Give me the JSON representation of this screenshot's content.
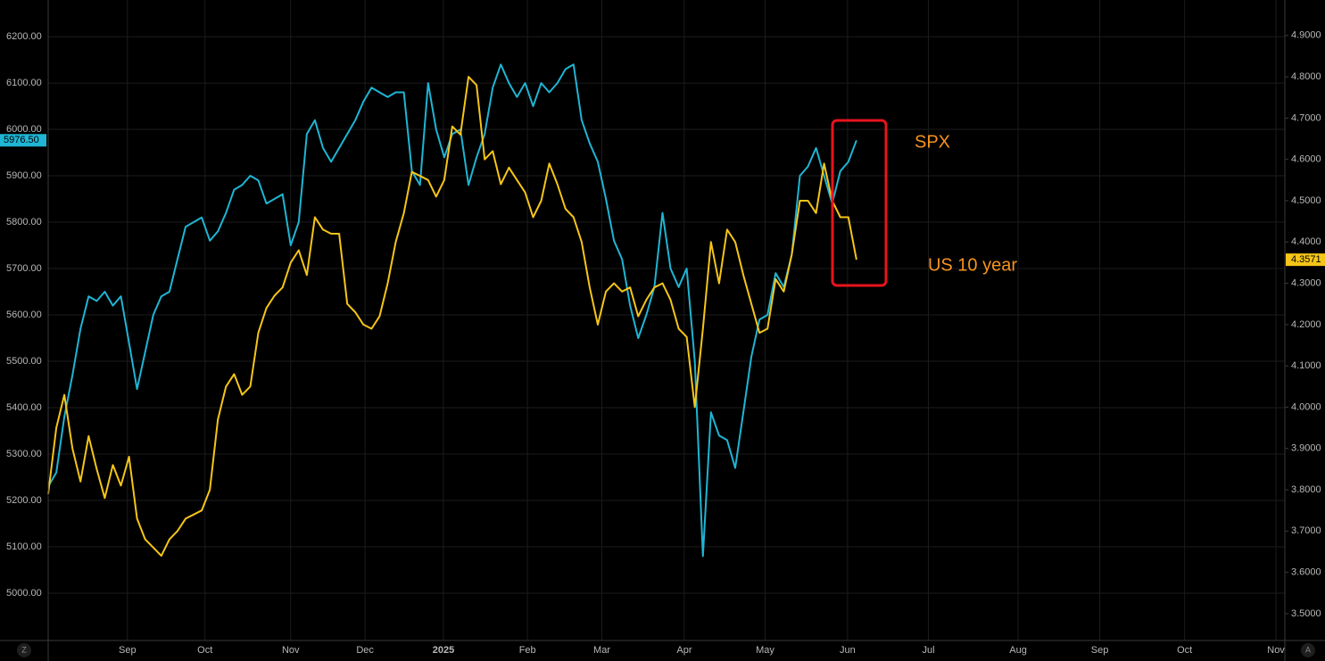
{
  "chart_data": {
    "type": "line",
    "background": "#000000",
    "grid": true,
    "annotations": [
      {
        "text": "SPX",
        "series": 0,
        "color": "#f7931e"
      },
      {
        "text": "US 10 year",
        "series": 1,
        "color": "#f7931e"
      }
    ],
    "axis_buttons": [
      "Z",
      "A"
    ],
    "xlim": [
      0,
      153
    ],
    "xticks": [
      {
        "value": 9.8,
        "label": "Sep"
      },
      {
        "value": 19.4,
        "label": "Oct"
      },
      {
        "value": 30.0,
        "label": "Nov"
      },
      {
        "value": 39.2,
        "label": "Dec"
      },
      {
        "value": 48.9,
        "label": "2025"
      },
      {
        "value": 59.3,
        "label": "Feb"
      },
      {
        "value": 68.5,
        "label": "Mar"
      },
      {
        "value": 78.7,
        "label": "Apr"
      },
      {
        "value": 88.7,
        "label": "May"
      },
      {
        "value": 98.9,
        "label": "Jun"
      },
      {
        "value": 108.9,
        "label": "Jul"
      },
      {
        "value": 120.0,
        "label": "Aug"
      },
      {
        "value": 130.1,
        "label": "Sep"
      },
      {
        "value": 140.6,
        "label": "Oct"
      },
      {
        "value": 151.9,
        "label": "Nov"
      }
    ],
    "ylim": [
      4898,
      6279
    ],
    "yticks": [
      {
        "value": 5000,
        "label": "5000.00"
      },
      {
        "value": 5100,
        "label": "5100.00"
      },
      {
        "value": 5200,
        "label": "5200.00"
      },
      {
        "value": 5300,
        "label": "5300.00"
      },
      {
        "value": 5400,
        "label": "5400.00"
      },
      {
        "value": 5500,
        "label": "5500.00"
      },
      {
        "value": 5600,
        "label": "5600.00"
      },
      {
        "value": 5700,
        "label": "5700.00"
      },
      {
        "value": 5800,
        "label": "5800.00"
      },
      {
        "value": 5900,
        "label": "5900.00"
      },
      {
        "value": 6000,
        "label": "6000.00"
      },
      {
        "value": 6100,
        "label": "6100.00"
      },
      {
        "value": 6200,
        "label": "6200.00"
      }
    ],
    "y2lim": [
      3.435,
      4.986
    ],
    "y2ticks": [
      {
        "value": 3.5,
        "label": "3.5000"
      },
      {
        "value": 3.6,
        "label": "3.6000"
      },
      {
        "value": 3.7,
        "label": "3.7000"
      },
      {
        "value": 3.8,
        "label": "3.8000"
      },
      {
        "value": 3.9,
        "label": "3.9000"
      },
      {
        "value": 4.0,
        "label": "4.0000"
      },
      {
        "value": 4.1,
        "label": "4.1000"
      },
      {
        "value": 4.2,
        "label": "4.2000"
      },
      {
        "value": 4.3,
        "label": "4.3000"
      },
      {
        "value": 4.4,
        "label": "4.4000"
      },
      {
        "value": 4.5,
        "label": "4.5000"
      },
      {
        "value": 4.6,
        "label": "4.6000"
      },
      {
        "value": 4.7,
        "label": "4.7000"
      },
      {
        "value": 4.8,
        "label": "4.8000"
      },
      {
        "value": 4.9,
        "label": "4.9000"
      }
    ],
    "series": [
      {
        "name": "SPX",
        "color": "#1fb5d4",
        "axis": "y",
        "values": [
          5230,
          5260,
          5380,
          5470,
          5570,
          5640,
          5630,
          5650,
          5620,
          5640,
          5540,
          5440,
          5520,
          5600,
          5640,
          5650,
          5720,
          5790,
          5800,
          5810,
          5760,
          5780,
          5820,
          5870,
          5880,
          5900,
          5890,
          5840,
          5850,
          5860,
          5750,
          5800,
          5990,
          6020,
          5960,
          5930,
          5960,
          5990,
          6020,
          6060,
          6090,
          6080,
          6070,
          6080,
          6080,
          5910,
          5880,
          6100,
          6000,
          5940,
          5990,
          6000,
          5880,
          5940,
          5990,
          6090,
          6140,
          6100,
          6070,
          6100,
          6050,
          6100,
          6080,
          6100,
          6130,
          6140,
          6020,
          5970,
          5930,
          5850,
          5760,
          5720,
          5620,
          5550,
          5600,
          5660,
          5820,
          5700,
          5660,
          5700,
          5500,
          5080,
          5390,
          5340,
          5330,
          5270,
          5390,
          5510,
          5590,
          5600,
          5690,
          5660,
          5730,
          5900,
          5920,
          5960,
          5900,
          5840,
          5910,
          5930,
          5976.5
        ],
        "value_labels": [
          null,
          null,
          null,
          null,
          null,
          null,
          null,
          null,
          null,
          null,
          null,
          null,
          null,
          null,
          null,
          null,
          null,
          null,
          null,
          null,
          null,
          null,
          null,
          null,
          null,
          null,
          null,
          null,
          null,
          null,
          null,
          null,
          null,
          null,
          null,
          null,
          null,
          null,
          null,
          null,
          null,
          null,
          null,
          null,
          null,
          null,
          null,
          null,
          null,
          null,
          null,
          null,
          null,
          null,
          null,
          null,
          null,
          null,
          null,
          null,
          null,
          null,
          null,
          null,
          null,
          null,
          null,
          null,
          null,
          null,
          null,
          null,
          null,
          null,
          null,
          null,
          null,
          null,
          null,
          null,
          null,
          null,
          null,
          null,
          null,
          null,
          null,
          null,
          null,
          null,
          null,
          null,
          null,
          null,
          null,
          null,
          null,
          null,
          null,
          null,
          "5976.50"
        ]
      },
      {
        "name": "US 10 year",
        "color": "#f5c518",
        "axis": "y2",
        "values": [
          3.79,
          3.95,
          4.03,
          3.9,
          3.82,
          3.93,
          3.85,
          3.78,
          3.86,
          3.81,
          3.88,
          3.73,
          3.68,
          3.66,
          3.64,
          3.68,
          3.7,
          3.73,
          3.74,
          3.75,
          3.8,
          3.97,
          4.05,
          4.08,
          4.03,
          4.05,
          4.18,
          4.24,
          4.27,
          4.29,
          4.35,
          4.38,
          4.32,
          4.46,
          4.43,
          4.42,
          4.42,
          4.25,
          4.23,
          4.2,
          4.19,
          4.22,
          4.3,
          4.4,
          4.47,
          4.57,
          4.56,
          4.55,
          4.51,
          4.55,
          4.68,
          4.66,
          4.8,
          4.78,
          4.6,
          4.62,
          4.54,
          4.58,
          4.55,
          4.52,
          4.46,
          4.5,
          4.59,
          4.54,
          4.48,
          4.46,
          4.4,
          4.29,
          4.2,
          4.28,
          4.3,
          4.28,
          4.29,
          4.22,
          4.26,
          4.29,
          4.3,
          4.26,
          4.19,
          4.17,
          4.0,
          4.19,
          4.4,
          4.3,
          4.43,
          4.4,
          4.32,
          4.25,
          4.18,
          4.19,
          4.31,
          4.28,
          4.37,
          4.5,
          4.5,
          4.47,
          4.59,
          4.5,
          4.46,
          4.46,
          4.3571
        ],
        "value_labels": [
          null,
          null,
          null,
          null,
          null,
          null,
          null,
          null,
          null,
          null,
          null,
          null,
          null,
          null,
          null,
          null,
          null,
          null,
          null,
          null,
          null,
          null,
          null,
          null,
          null,
          null,
          null,
          null,
          null,
          null,
          null,
          null,
          null,
          null,
          null,
          null,
          null,
          null,
          null,
          null,
          null,
          null,
          null,
          null,
          null,
          null,
          null,
          null,
          null,
          null,
          null,
          null,
          null,
          null,
          null,
          null,
          null,
          null,
          null,
          null,
          null,
          null,
          null,
          null,
          null,
          null,
          null,
          null,
          null,
          null,
          null,
          null,
          null,
          null,
          null,
          null,
          null,
          null,
          null,
          null,
          null,
          null,
          null,
          null,
          null,
          null,
          null,
          null,
          null,
          null,
          null,
          null,
          null,
          null,
          null,
          null,
          null,
          null,
          null,
          null,
          "4.3571"
        ]
      }
    ]
  }
}
